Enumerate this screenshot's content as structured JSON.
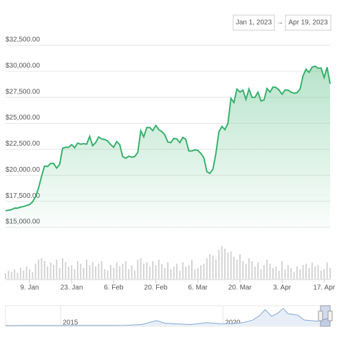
{
  "chart_data": {
    "type": "area",
    "range_from": "Jan 1, 2023",
    "range_arrow": "→",
    "range_to": "Apr 19, 2023",
    "color": "#33b06a",
    "categories": [
      null,
      null,
      null,
      null,
      null,
      null,
      null,
      null,
      "9. Jan",
      null,
      null,
      null,
      null,
      null,
      null,
      null,
      null,
      null,
      null,
      null,
      null,
      null,
      "23. Jan",
      null,
      null,
      null,
      null,
      null,
      null,
      null,
      null,
      null,
      null,
      null,
      null,
      null,
      "6. Feb",
      null,
      null,
      null,
      null,
      null,
      null,
      null,
      null,
      null,
      null,
      null,
      null,
      null,
      "20. Feb",
      null,
      null,
      null,
      null,
      null,
      null,
      null,
      null,
      null,
      null,
      null,
      null,
      null,
      "6. Mar",
      null,
      null,
      null,
      null,
      null,
      null,
      null,
      null,
      null,
      null,
      null,
      null,
      null,
      "20. Mar",
      null,
      null,
      null,
      null,
      null,
      null,
      null,
      null,
      null,
      null,
      null,
      null,
      null,
      "3. Apr",
      null,
      null,
      null,
      null,
      null,
      null,
      null,
      null,
      null,
      null,
      null,
      null,
      null,
      "17. Apr",
      null,
      null
    ],
    "values": [
      16600,
      16650,
      16700,
      16850,
      16850,
      16950,
      17000,
      17100,
      17200,
      17450,
      17950,
      18800,
      19900,
      20900,
      20850,
      21150,
      21150,
      20700,
      21050,
      22600,
      22700,
      22700,
      22950,
      22650,
      23100,
      23000,
      23050,
      23000,
      23750,
      22850,
      23150,
      23700,
      23500,
      23450,
      23300,
      22950,
      22700,
      23250,
      22950,
      21800,
      21650,
      21850,
      21750,
      21800,
      22200,
      24300,
      23700,
      24600,
      24600,
      24300,
      24800,
      24400,
      24200,
      23900,
      23200,
      23150,
      23550,
      23500,
      23150,
      23650,
      23450,
      22350,
      22350,
      22450,
      22400,
      22100,
      21700,
      20350,
      20200,
      20600,
      22100,
      24200,
      24700,
      24400,
      25000,
      27400,
      27000,
      28300,
      28000,
      28200,
      27300,
      28300,
      27500,
      27500,
      28000,
      27150,
      27250,
      28350,
      28000,
      28500,
      28450,
      28200,
      27800,
      28200,
      28200,
      28000,
      27900,
      27950,
      28300,
      29600,
      30200,
      29900,
      30400,
      30500,
      30300,
      30300,
      29400,
      30400,
      28800
    ],
    "ylim": [
      15000,
      32500
    ],
    "yticks": [
      {
        "value": 15000,
        "label": "$15,000.00"
      },
      {
        "value": 17500,
        "label": "$17,500.00"
      },
      {
        "value": 20000,
        "label": "$20,000.00"
      },
      {
        "value": 22500,
        "label": "$22,500.00"
      },
      {
        "value": 25000,
        "label": "$25,000.00"
      },
      {
        "value": 27500,
        "label": "$27,500.00"
      },
      {
        "value": 30000,
        "label": "$30,000.00"
      },
      {
        "value": 32500,
        "label": "$32,500.00"
      }
    ],
    "grid": true,
    "volume": {
      "color": "#d3d3d3",
      "ylim": [
        0,
        50
      ],
      "values": [
        8,
        12,
        10,
        14,
        9,
        16,
        12,
        18,
        14,
        10,
        22,
        28,
        30,
        26,
        18,
        24,
        20,
        28,
        16,
        30,
        24,
        18,
        20,
        14,
        26,
        22,
        16,
        28,
        20,
        24,
        18,
        22,
        26,
        14,
        12,
        20,
        16,
        24,
        18,
        22,
        26,
        14,
        20,
        12,
        28,
        30,
        22,
        24,
        18,
        26,
        20,
        28,
        22,
        16,
        24,
        14,
        18,
        22,
        12,
        24,
        18,
        20,
        28,
        14,
        16,
        20,
        22,
        30,
        36,
        34,
        28,
        42,
        48,
        44,
        38,
        40,
        32,
        28,
        36,
        26,
        22,
        30,
        26,
        18,
        24,
        14,
        20,
        28,
        22,
        16,
        18,
        12,
        26,
        14,
        20,
        16,
        10,
        18,
        14,
        20,
        22,
        16,
        24,
        18,
        20,
        12,
        14,
        24,
        16
      ]
    },
    "navigator": {
      "color": "#7fa6d6",
      "x": [
        2013.3,
        2014,
        2014.5,
        2015,
        2015.5,
        2016,
        2016.5,
        2017,
        2017.5,
        2017.95,
        2018.2,
        2018.5,
        2019,
        2019.5,
        2019.9,
        2020.3,
        2020.6,
        2020.9,
        2021.1,
        2021.3,
        2021.5,
        2021.7,
        2021.85,
        2022.0,
        2022.3,
        2022.5,
        2022.9,
        2023.3
      ],
      "values": [
        100,
        500,
        300,
        300,
        400,
        600,
        700,
        1000,
        4000,
        19000,
        9000,
        7000,
        4000,
        11000,
        7500,
        7000,
        11000,
        20000,
        35000,
        60000,
        35000,
        48000,
        65000,
        45000,
        40000,
        21000,
        16500,
        28800
      ],
      "xlim": [
        2013.3,
        2023.3
      ],
      "ylim": [
        0,
        70000
      ],
      "xticks": [
        2015,
        2020
      ]
    }
  }
}
